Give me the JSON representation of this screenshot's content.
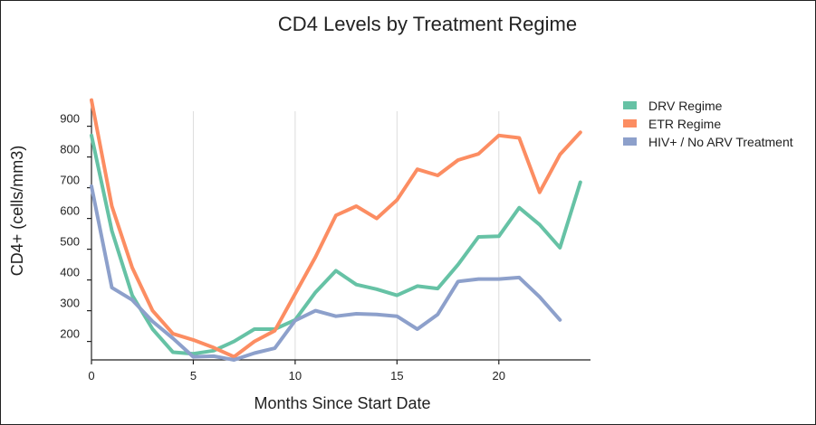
{
  "chart_data": {
    "type": "line",
    "title": "CD4 Levels by Treatment Regime",
    "xlabel": "Months Since Start Date",
    "ylabel": "CD4+ (cells/mm3)",
    "xlim": [
      0,
      24.5
    ],
    "ylim": [
      140,
      990
    ],
    "x_ticks": [
      0,
      5,
      10,
      15,
      20
    ],
    "y_ticks": [
      200,
      300,
      400,
      500,
      600,
      700,
      800,
      900
    ],
    "grid": "vertical",
    "legend_position": "top-right",
    "x": [
      0,
      1,
      2,
      3,
      4,
      5,
      6,
      7,
      8,
      9,
      10,
      11,
      12,
      13,
      14,
      15,
      16,
      17,
      18,
      19,
      20,
      21,
      22,
      23,
      24
    ],
    "series": [
      {
        "name": "DRV Regime",
        "color": "#66c2a5",
        "values": [
          870,
          560,
          350,
          240,
          165,
          160,
          170,
          200,
          240,
          240,
          270,
          360,
          430,
          385,
          370,
          350,
          380,
          372,
          450,
          540,
          542,
          635,
          580,
          505,
          718
        ]
      },
      {
        "name": "ETR Regime",
        "color": "#fc8d62",
        "values": [
          985,
          640,
          440,
          300,
          225,
          205,
          180,
          150,
          200,
          235,
          355,
          475,
          610,
          640,
          600,
          660,
          760,
          740,
          790,
          810,
          870,
          862,
          685,
          808,
          880
        ]
      },
      {
        "name": "HIV+ / No ARV Treatment",
        "color": "#8da0cb",
        "values": [
          705,
          375,
          335,
          265,
          210,
          150,
          152,
          140,
          162,
          178,
          268,
          300,
          282,
          290,
          288,
          282,
          240,
          288,
          395,
          403,
          403,
          408,
          345,
          270,
          null
        ]
      }
    ]
  }
}
